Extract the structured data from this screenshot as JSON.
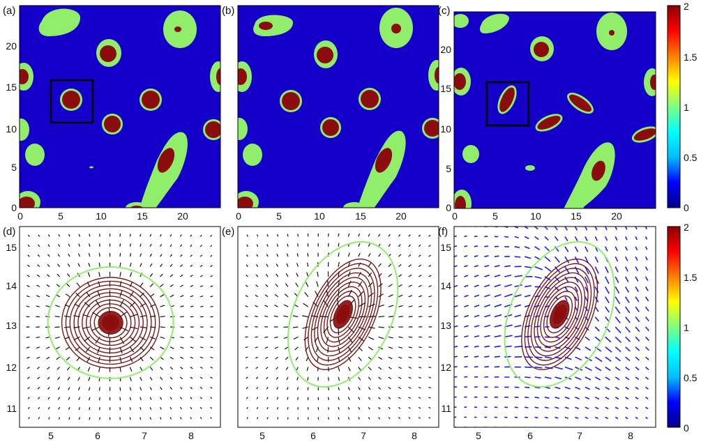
{
  "figure": {
    "panel_labels": [
      "(a)",
      "(b)",
      "(c)",
      "(d)",
      "(e)",
      "(f)"
    ]
  },
  "colors": {
    "background": "#1400c8",
    "outer_ring": "#90ee6a",
    "core": "#8b0c0c",
    "frame": "#000000",
    "quiver_black": "#111111",
    "quiver_blue": "#1a1aff",
    "contour_dark": "#6b0000",
    "contour_light": "#90ee6a"
  },
  "colorbar": {
    "stops": [
      "#00008b",
      "#0000ff",
      "#00bfff",
      "#00ffff",
      "#7fff7f",
      "#ffff00",
      "#ff7f00",
      "#ff0000",
      "#8b0000"
    ],
    "ticks": [
      "2",
      "1.5",
      "1",
      "0.5",
      "0"
    ]
  },
  "chart_data": [
    {
      "panel": "(a)",
      "type": "heatmap",
      "xlim": [
        0,
        25
      ],
      "ylim": [
        0,
        25
      ],
      "xticks": [
        "0",
        "5",
        "10",
        "15",
        "20"
      ],
      "yticks": [
        "0",
        "5",
        "10",
        "15",
        "20"
      ],
      "clim": [
        0,
        2
      ],
      "inset_box": {
        "x": [
          4,
          9
        ],
        "y": [
          10.5,
          16
        ]
      }
    },
    {
      "panel": "(b)",
      "type": "heatmap",
      "xlim": [
        0,
        25
      ],
      "ylim": [
        0,
        25
      ],
      "xticks": [
        "0",
        "5",
        "10",
        "15",
        "20"
      ],
      "yticks": [],
      "clim": [
        0,
        2
      ]
    },
    {
      "panel": "(c)",
      "type": "heatmap",
      "xlim": [
        0,
        25
      ],
      "ylim": [
        0,
        25
      ],
      "xticks": [
        "0",
        "5",
        "10",
        "15",
        "20"
      ],
      "yticks": [
        "0",
        "5",
        "10",
        "15",
        "20"
      ],
      "clim": [
        0,
        2
      ],
      "inset_box": {
        "x": [
          4,
          9
        ],
        "y": [
          10.5,
          16
        ]
      }
    },
    {
      "panel": "(d)",
      "type": "quiver-contour",
      "xlim": [
        4.3,
        8.6
      ],
      "ylim": [
        10.6,
        15.4
      ],
      "xticks": [
        "5",
        "6",
        "7",
        "8"
      ],
      "yticks": [
        "11",
        "12",
        "13",
        "14",
        "15"
      ],
      "center": [
        6.25,
        13.1
      ]
    },
    {
      "panel": "(e)",
      "type": "quiver-contour",
      "xlim": [
        4.3,
        8.6
      ],
      "ylim": [
        10.6,
        15.4
      ],
      "xticks": [
        "5",
        "6",
        "7",
        "8"
      ],
      "yticks": [],
      "center": [
        6.55,
        13.3
      ]
    },
    {
      "panel": "(f)",
      "type": "quiver-contour",
      "xlim": [
        4.3,
        8.6
      ],
      "ylim": [
        10.6,
        15.4
      ],
      "xticks": [
        "5",
        "6",
        "7",
        "8"
      ],
      "yticks": [
        "11",
        "12",
        "13",
        "14",
        "15"
      ],
      "center": [
        6.55,
        13.3
      ]
    }
  ]
}
